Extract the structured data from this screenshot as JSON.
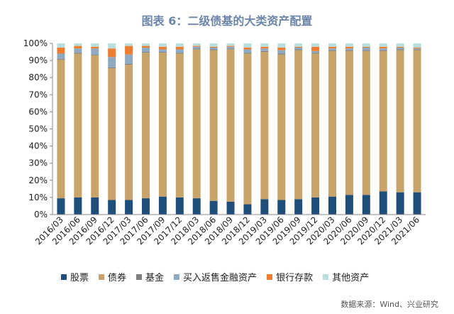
{
  "chart_data": {
    "type": "bar",
    "stacked": true,
    "title": "图表 6：二级债基的大类资产配置",
    "categories": [
      "2016/03",
      "2016/06",
      "2016/09",
      "2016/12",
      "2017/03",
      "2017/06",
      "2017/09",
      "2017/12",
      "2018/03",
      "2018/06",
      "2018/09",
      "2018/12",
      "2019/03",
      "2019/06",
      "2019/09",
      "2019/12",
      "2020/03",
      "2020/06",
      "2020/09",
      "2020/12",
      "2021/03",
      "2021/06"
    ],
    "y_ticks": [
      "0%",
      "10%",
      "20%",
      "30%",
      "40%",
      "50%",
      "60%",
      "70%",
      "80%",
      "90%",
      "100%"
    ],
    "ylim": [
      0,
      100
    ],
    "legend_position": "bottom",
    "grid": false,
    "series": [
      {
        "name": "股票",
        "color": "#1f4e79",
        "values": [
          9.5,
          10,
          10,
          8.5,
          8.5,
          9.5,
          10.5,
          10,
          9.5,
          8,
          7.5,
          6,
          9,
          8.5,
          9,
          10,
          10.5,
          11.5,
          11.5,
          13.5,
          13,
          13
        ]
      },
      {
        "name": "债券",
        "color": "#c6a46c",
        "values": [
          81,
          84,
          83,
          77,
          79,
          85,
          84,
          84,
          87,
          88,
          89,
          88,
          86,
          85,
          87,
          84,
          85,
          84,
          84,
          82,
          83,
          83
        ]
      },
      {
        "name": "基金",
        "color": "#7f7f7f",
        "values": [
          0.5,
          0.5,
          0.5,
          0.5,
          0.5,
          0.5,
          0.5,
          0.5,
          0.5,
          0.5,
          0.5,
          0.5,
          0.5,
          0.5,
          0.5,
          0.5,
          0.5,
          0.5,
          0.5,
          0.5,
          0.5,
          0.5
        ]
      },
      {
        "name": "买入返售金融资产",
        "color": "#8fa9c0",
        "values": [
          3,
          2.5,
          3.5,
          6,
          5.5,
          2.5,
          1.5,
          2,
          1,
          1,
          1,
          2,
          1.5,
          2,
          1,
          1,
          1,
          1,
          1.5,
          1,
          1,
          0.5
        ]
      },
      {
        "name": "银行存款",
        "color": "#ed7d31",
        "values": [
          3.5,
          1.5,
          1,
          5,
          5,
          1,
          1.5,
          1.5,
          0.5,
          0.5,
          0.5,
          1,
          1,
          1.5,
          0.5,
          2.5,
          1,
          1,
          0.5,
          1,
          0.5,
          0.5
        ]
      },
      {
        "name": "其他资产",
        "color": "#b9dedd",
        "values": [
          2.5,
          1.5,
          2,
          3,
          1.5,
          1.5,
          2,
          2,
          1.5,
          2,
          1.5,
          2.5,
          2,
          2.5,
          2,
          2,
          2,
          2,
          2,
          2,
          2,
          2.5
        ]
      }
    ]
  },
  "source": "数据来源：Wind、兴业研究"
}
